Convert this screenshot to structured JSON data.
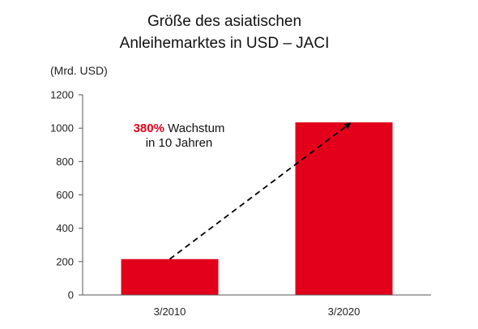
{
  "chart_data": {
    "type": "bar",
    "title_lines": [
      "Größe des asiatischen",
      "Anleihemarktes in USD – JACI"
    ],
    "unit_label": "(Mrd. USD)",
    "categories": [
      "3/2010",
      "3/2020"
    ],
    "values": [
      215,
      1035
    ],
    "ylim": [
      0,
      1200
    ],
    "yticks": [
      0,
      200,
      400,
      600,
      800,
      1000,
      1200
    ],
    "grid": false,
    "bar_color": "#e2001a",
    "annotation": {
      "accent_text": "380%",
      "text_line1_rest": " Wachstum",
      "text_line2": "in 10 Jahren",
      "accent_color": "#e2001a"
    }
  }
}
